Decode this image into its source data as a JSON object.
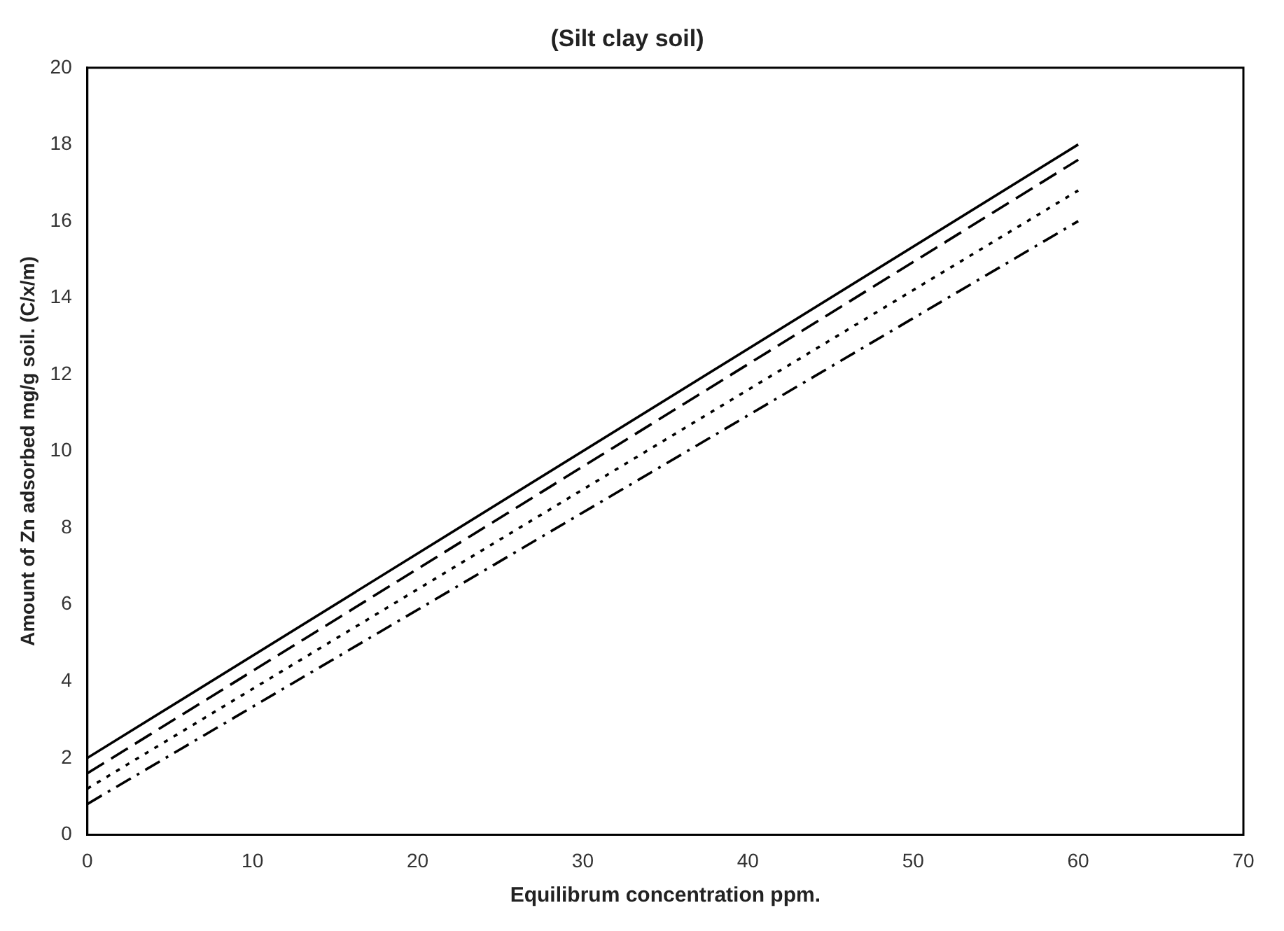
{
  "chart_data": {
    "type": "line",
    "title": "(Silt clay soil)",
    "xlabel": "Equilibrum concentration ppm.",
    "ylabel": "Amount of Zn adsorbed mg/g soil. (C/x/m)",
    "x": [
      0,
      60
    ],
    "series": [
      {
        "color": "#000000",
        "values": [
          2.0,
          18.0
        ],
        "line_style": "solid"
      },
      {
        "color": "#000000",
        "values": [
          1.6,
          17.6
        ],
        "line_style": "dashed"
      },
      {
        "color": "#000000",
        "values": [
          1.2,
          16.8
        ],
        "line_style": "dotted"
      },
      {
        "color": "#000000",
        "values": [
          0.8,
          16.0
        ],
        "line_style": "dashdot"
      }
    ],
    "xlim": [
      0,
      70
    ],
    "xticks": [
      0,
      10,
      20,
      30,
      40,
      50,
      60,
      70
    ],
    "ylim": [
      0,
      20
    ],
    "yticks": [
      0,
      2,
      4,
      6,
      8,
      10,
      12,
      14,
      16,
      18,
      20
    ],
    "grid": false,
    "marker": "none"
  }
}
